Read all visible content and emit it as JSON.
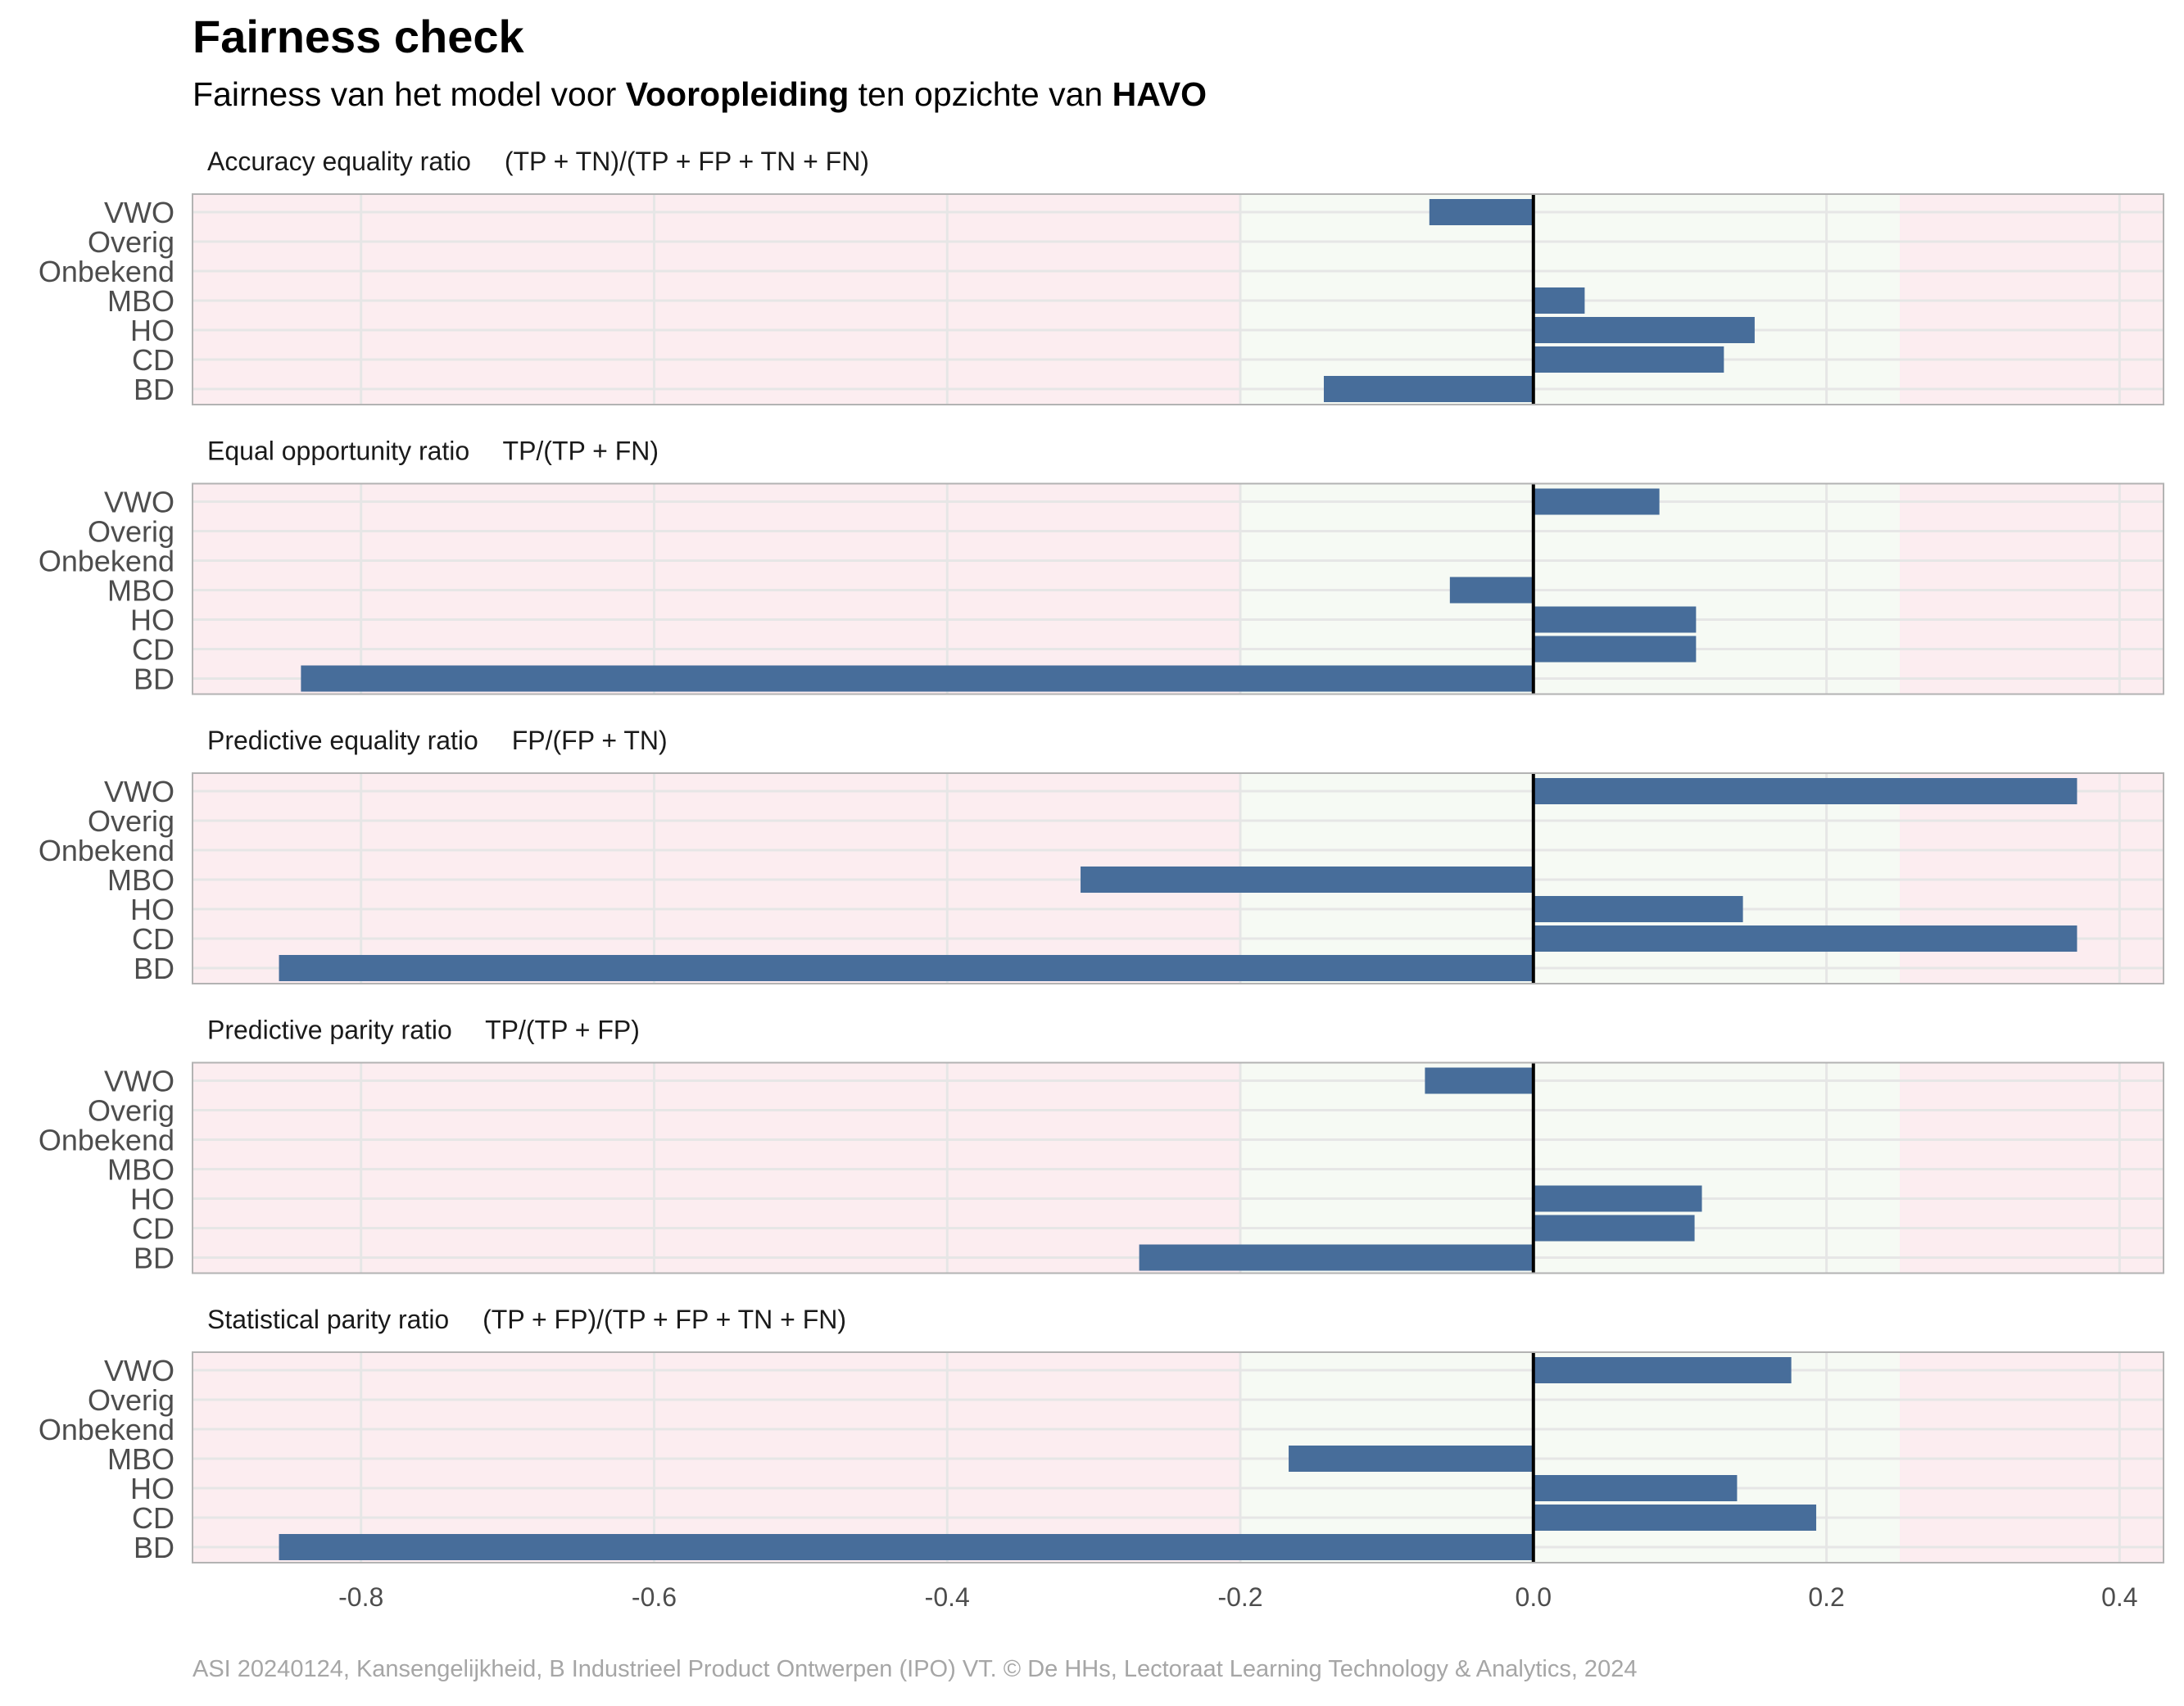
{
  "title": "Fairness check",
  "subtitle": {
    "prefix": "Fairness van het model voor ",
    "variable": "Vooropleiding",
    "middle": " ten opzichte van ",
    "reference": "HAVO"
  },
  "caption": "ASI 20240124, Kansengelijkheid, B Industrieel Product Ontwerpen (IPO) VT. © De HHs, Lectoraat Learning Technology & Analytics, 2024",
  "colors": {
    "bar": "#476d9a",
    "unfair_zone": "#fcedf0",
    "fair_zone": "#f6faf4",
    "zero_line": "#000000",
    "grid": "#e6e6e6"
  },
  "chart_data": {
    "type": "bar",
    "orientation": "horizontal",
    "categories": [
      "VWO",
      "Overig",
      "Onbekend",
      "MBO",
      "HO",
      "CD",
      "BD"
    ],
    "xlim": [
      -0.915,
      0.43
    ],
    "x_ticks": [
      -0.8,
      -0.6,
      -0.4,
      -0.2,
      0.0,
      0.2,
      0.4
    ],
    "x_tick_labels": [
      "-0.8",
      "-0.6",
      "-0.4",
      "-0.2",
      "0.0",
      "0.2",
      "0.4"
    ],
    "fair_band": [
      -0.2,
      0.25
    ],
    "grid": true,
    "panels": [
      {
        "name": "Accuracy equality ratio",
        "formula": "(TP + TN)/(TP + FP + TN + FN)",
        "values": [
          -0.071,
          null,
          null,
          0.035,
          0.151,
          0.13,
          -0.143
        ]
      },
      {
        "name": "Equal opportunity ratio",
        "formula": "TP/(TP + FN)",
        "values": [
          0.086,
          null,
          null,
          -0.057,
          0.111,
          0.111,
          -0.841
        ]
      },
      {
        "name": "Predictive equality ratio",
        "formula": "FP/(FP + TN)",
        "values": [
          0.371,
          null,
          null,
          -0.309,
          0.143,
          0.371,
          -0.856
        ]
      },
      {
        "name": "Predictive parity ratio",
        "formula": "TP/(TP + FP)",
        "values": [
          -0.074,
          null,
          null,
          0.001,
          0.115,
          0.11,
          -0.269
        ]
      },
      {
        "name": "Statistical parity ratio",
        "formula": "(TP + FP)/(TP + FP + TN + FN)",
        "values": [
          0.176,
          null,
          null,
          -0.167,
          0.139,
          0.193,
          -0.856
        ]
      }
    ]
  }
}
